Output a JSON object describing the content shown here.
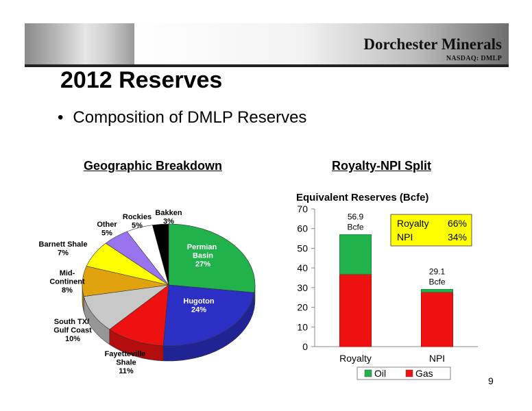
{
  "header": {
    "company": "Dorchester Minerals",
    "ticker": "NASDAQ: DMLP"
  },
  "slide": {
    "title": "2012 Reserves",
    "bullet": "Composition of DMLP Reserves",
    "page_number": "9"
  },
  "chart_data": [
    {
      "type": "pie",
      "title": "Geographic Breakdown",
      "slices": [
        {
          "label": "Permian Basin",
          "value": 27,
          "pct_label": "27%",
          "color": "#22b24c"
        },
        {
          "label": "Hugoton",
          "value": 24,
          "pct_label": "24%",
          "color": "#2b2fc4"
        },
        {
          "label": "Fayetteville Shale",
          "value": 11,
          "pct_label": "11%",
          "color": "#ee1111"
        },
        {
          "label": "South TX/ Gulf Coast",
          "value": 10,
          "pct_label": "10%",
          "color": "#c8c8c8"
        },
        {
          "label": "Mid-Continent",
          "value": 8,
          "pct_label": "8%",
          "color": "#e0a30f"
        },
        {
          "label": "Barnett Shale",
          "value": 7,
          "pct_label": "7%",
          "color": "#ffff00"
        },
        {
          "label": "Other",
          "value": 5,
          "pct_label": "5%",
          "color": "#9a73ef"
        },
        {
          "label": "Rockies",
          "value": 5,
          "pct_label": "5%",
          "color": "#ffffff"
        },
        {
          "label": "Bakken",
          "value": 3,
          "pct_label": "3%",
          "color": "#000000"
        }
      ]
    },
    {
      "type": "bar",
      "stacked": true,
      "title": "Royalty-NPI Split",
      "ylabel": "Equivalent Reserves (Bcfe)",
      "categories": [
        "Royalty",
        "NPI"
      ],
      "series": [
        {
          "name": "Gas",
          "color": "#ee1111",
          "values": [
            36.8,
            27.7
          ]
        },
        {
          "name": "Oil",
          "color": "#22b24c",
          "values": [
            20.1,
            1.4
          ]
        }
      ],
      "totals": [
        {
          "value": "56.9",
          "unit": "Bcfe"
        },
        {
          "value": "29.1",
          "unit": "Bcfe"
        }
      ],
      "ylim": [
        0,
        70
      ],
      "yticks": [
        0,
        10,
        20,
        30,
        40,
        50,
        60,
        70
      ],
      "legend_position": "bottom",
      "legend_order": [
        "Oil",
        "Gas"
      ],
      "annotation": {
        "background": "#ffff00",
        "rows": [
          {
            "label": "Royalty",
            "value": "66%"
          },
          {
            "label": "NPI",
            "value": "34%"
          }
        ]
      }
    }
  ]
}
